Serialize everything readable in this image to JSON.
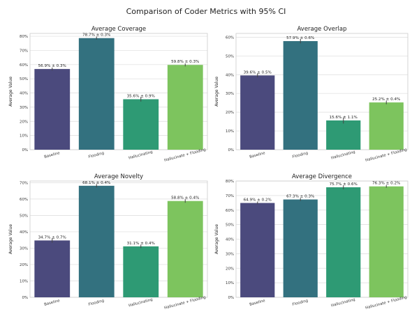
{
  "suptitle": "Comparison of Coder Metrics with 95% CI",
  "chart_data": [
    {
      "type": "bar",
      "title": "Average Coverage",
      "ylabel": "Average Value",
      "categories": [
        "Baseline",
        "Flooding",
        "Hallucinating",
        "Hallucinate + Flooding"
      ],
      "values": [
        56.9,
        78.7,
        35.6,
        59.8
      ],
      "errors": [
        0.3,
        0.3,
        0.9,
        0.3
      ],
      "labels": [
        "56.9% ± 0.3%",
        "78.7% ± 0.3%",
        "35.6% ± 0.9%",
        "59.8% ± 0.3%"
      ],
      "yticks": [
        "0%",
        "10%",
        "20%",
        "30%",
        "40%",
        "50%",
        "60%",
        "70%",
        "80%"
      ],
      "ylim": [
        0,
        82
      ],
      "grid": true
    },
    {
      "type": "bar",
      "title": "Average Overlap",
      "ylabel": "Average Value",
      "categories": [
        "Baseline",
        "Flooding",
        "Hallucinating",
        "Hallucinate + Flooding"
      ],
      "values": [
        39.6,
        57.9,
        15.6,
        25.2
      ],
      "errors": [
        0.5,
        0.6,
        1.1,
        0.4
      ],
      "labels": [
        "39.6% ± 0.5%",
        "57.9% ± 0.6%",
        "15.6% ± 1.1%",
        "25.2% ± 0.4%"
      ],
      "yticks": [
        "0%",
        "10%",
        "20%",
        "30%",
        "40%",
        "50%",
        "60%"
      ],
      "ylim": [
        0,
        62
      ],
      "grid": true
    },
    {
      "type": "bar",
      "title": "Average Novelty",
      "ylabel": "Average Value",
      "categories": [
        "Baseline",
        "Flooding",
        "Hallucinating",
        "Hallucinate + Flooding"
      ],
      "values": [
        34.7,
        68.1,
        31.1,
        58.8
      ],
      "errors": [
        0.7,
        0.4,
        0.4,
        0.4
      ],
      "labels": [
        "34.7% ± 0.7%",
        "68.1% ± 0.4%",
        "31.1% ± 0.4%",
        "58.8% ± 0.4%"
      ],
      "yticks": [
        "0%",
        "10%",
        "20%",
        "30%",
        "40%",
        "50%",
        "60%",
        "70%"
      ],
      "ylim": [
        0,
        71
      ],
      "grid": true
    },
    {
      "type": "bar",
      "title": "Average Divergence",
      "ylabel": "Average Value",
      "categories": [
        "Baseline",
        "Flooding",
        "Hallucinating",
        "Hallucinate + Flooding"
      ],
      "values": [
        64.9,
        67.3,
        75.7,
        76.3
      ],
      "errors": [
        0.2,
        0.3,
        0.6,
        0.2
      ],
      "labels": [
        "64.9% ± 0.2%",
        "67.3% ± 0.3%",
        "75.7% ± 0.6%",
        "76.3% ± 0.2%"
      ],
      "yticks": [
        "0%",
        "10%",
        "20%",
        "30%",
        "40%",
        "50%",
        "60%",
        "70%",
        "80%"
      ],
      "ylim": [
        0,
        80
      ],
      "grid": true
    }
  ],
  "colors": {
    "bars": [
      "#4b4a7d",
      "#33717f",
      "#2e9a74",
      "#7dc45e"
    ],
    "grid": "#dcdcdc",
    "spine": "#cccccc",
    "error_bar": "#444444"
  }
}
